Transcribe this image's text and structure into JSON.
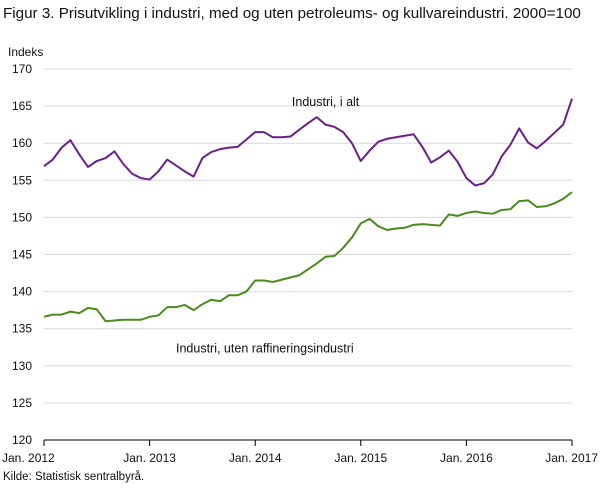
{
  "chart_data": {
    "type": "line",
    "title": "Figur 3. Prisutvikling i industri, med og uten petroleums- og kullvareindustri. 2000=100",
    "ylabel": "Indeks",
    "xlabel": "",
    "ylim": [
      120,
      170
    ],
    "yticks": [
      120,
      125,
      130,
      135,
      140,
      145,
      150,
      155,
      160,
      165,
      170
    ],
    "xlim": [
      "2012-01",
      "2017-01"
    ],
    "xtick_labels": [
      "Jan. 2012",
      "Jan. 2013",
      "Jan. 2014",
      "Jan. 2015",
      "Jan. 2016",
      "Jan. 2017"
    ],
    "grid": "horizontal",
    "legend": "none",
    "x": [
      "2012-01",
      "2012-02",
      "2012-03",
      "2012-04",
      "2012-05",
      "2012-06",
      "2012-07",
      "2012-08",
      "2012-09",
      "2012-10",
      "2012-11",
      "2012-12",
      "2013-01",
      "2013-02",
      "2013-03",
      "2013-04",
      "2013-05",
      "2013-06",
      "2013-07",
      "2013-08",
      "2013-09",
      "2013-10",
      "2013-11",
      "2013-12",
      "2014-01",
      "2014-02",
      "2014-03",
      "2014-04",
      "2014-05",
      "2014-06",
      "2014-07",
      "2014-08",
      "2014-09",
      "2014-10",
      "2014-11",
      "2014-12",
      "2015-01",
      "2015-02",
      "2015-03",
      "2015-04",
      "2015-05",
      "2015-06",
      "2015-07",
      "2015-08",
      "2015-09",
      "2015-10",
      "2015-11",
      "2015-12",
      "2016-01",
      "2016-02",
      "2016-03",
      "2016-04",
      "2016-05",
      "2016-06",
      "2016-07",
      "2016-08",
      "2016-09",
      "2016-10",
      "2016-11",
      "2016-12",
      "2017-01"
    ],
    "series": [
      {
        "name": "Industri, i alt",
        "color": "#6a1f8a",
        "values": [
          156.9,
          157.8,
          159.4,
          160.4,
          158.5,
          156.8,
          157.6,
          158.0,
          158.9,
          157.2,
          155.9,
          155.3,
          155.1,
          156.2,
          157.8,
          157.0,
          156.2,
          155.5,
          158.0,
          158.8,
          159.2,
          159.4,
          159.5,
          160.5,
          161.5,
          161.5,
          160.8,
          160.8,
          160.9,
          161.8,
          162.7,
          163.5,
          162.5,
          162.2,
          161.5,
          160.0,
          157.6,
          159.0,
          160.2,
          160.6,
          160.8,
          161.0,
          161.2,
          159.5,
          157.4,
          158.1,
          159.0,
          157.5,
          155.3,
          154.3,
          154.6,
          155.8,
          158.2,
          159.8,
          162.0,
          160.1,
          159.3,
          160.3,
          161.4,
          162.5,
          166.0
        ]
      },
      {
        "name": "Industri, uten raffineringsindustri",
        "color": "#4a8c1c",
        "values": [
          136.6,
          136.9,
          136.9,
          137.3,
          137.1,
          137.8,
          137.6,
          136.0,
          136.1,
          136.2,
          136.2,
          136.2,
          136.6,
          136.8,
          137.9,
          137.9,
          138.2,
          137.5,
          138.3,
          138.9,
          138.7,
          139.5,
          139.5,
          140.0,
          141.5,
          141.5,
          141.3,
          141.6,
          141.9,
          142.2,
          143.0,
          143.8,
          144.7,
          144.8,
          145.9,
          147.3,
          149.2,
          149.8,
          148.8,
          148.3,
          148.5,
          148.6,
          149.0,
          149.1,
          149.0,
          148.9,
          150.4,
          150.2,
          150.6,
          150.8,
          150.6,
          150.5,
          151.0,
          151.1,
          152.2,
          152.3,
          151.4,
          151.5,
          151.9,
          152.5,
          153.4
        ]
      }
    ],
    "annotations": [
      {
        "text": "Industri, i alt",
        "x": "2014-09",
        "y": 165.0,
        "anchor": "middle"
      },
      {
        "text": "Industri, uten raffineringsindustri",
        "x": "2013-04",
        "y": 131.8,
        "anchor": "start"
      }
    ]
  },
  "source_note": "Kilde: Statistisk sentralbyrå."
}
